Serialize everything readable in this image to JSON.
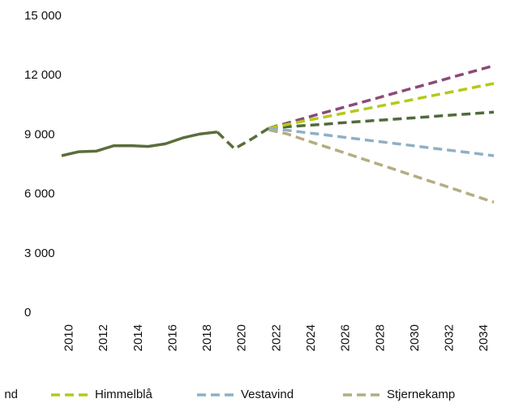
{
  "chart_data": {
    "type": "line",
    "x": [
      2010,
      2011,
      2012,
      2013,
      2014,
      2015,
      2016,
      2017,
      2018,
      2019,
      2020,
      2021,
      2022,
      2023,
      2024,
      2025,
      2026,
      2027,
      2028,
      2029,
      2030,
      2031,
      2032,
      2033,
      2034,
      2035
    ],
    "series": [
      {
        "color": "#5a6e3a",
        "dashed": false,
        "values": [
          7950,
          8150,
          8180,
          8450,
          8460,
          8420,
          8550,
          8850,
          9050,
          9150,
          null,
          null,
          null,
          null,
          null,
          null,
          null,
          null,
          null,
          null,
          null,
          null,
          null,
          null,
          null,
          null
        ]
      },
      {
        "color": "#5a6e3a",
        "dashed": true,
        "values": [
          null,
          null,
          null,
          null,
          null,
          null,
          null,
          null,
          null,
          9150,
          8300,
          8800,
          9350,
          null,
          null,
          null,
          null,
          null,
          null,
          null,
          null,
          null,
          null,
          null,
          null,
          null
        ]
      },
      {
        "color": "#8b4a78",
        "dashed": true,
        "values": [
          null,
          null,
          null,
          null,
          null,
          null,
          null,
          null,
          null,
          null,
          null,
          null,
          9350,
          9590,
          9830,
          10080,
          10320,
          10560,
          10800,
          11050,
          11290,
          11530,
          11770,
          12020,
          12260,
          12500
        ]
      },
      {
        "name": "nd",
        "color": "#4f6b3a",
        "dashed": true,
        "values": [
          null,
          null,
          null,
          null,
          null,
          null,
          null,
          null,
          null,
          null,
          null,
          null,
          9350,
          9410,
          9470,
          9530,
          9600,
          9660,
          9720,
          9780,
          9840,
          9900,
          9970,
          10030,
          10090,
          10150
        ]
      },
      {
        "name": "Himmelblå",
        "color": "#b5c918",
        "dashed": true,
        "values": [
          null,
          null,
          null,
          null,
          null,
          null,
          null,
          null,
          null,
          null,
          null,
          null,
          9350,
          9520,
          9700,
          9870,
          10040,
          10220,
          10390,
          10560,
          10730,
          10910,
          11080,
          11250,
          11430,
          11600
        ]
      },
      {
        "name": "Vestavind",
        "color": "#8fb0c4",
        "dashed": true,
        "values": [
          null,
          null,
          null,
          null,
          null,
          null,
          null,
          null,
          null,
          null,
          null,
          null,
          9350,
          9240,
          9130,
          9030,
          8920,
          8810,
          8700,
          8600,
          8490,
          8380,
          8270,
          8170,
          8060,
          7950
        ]
      },
      {
        "name": "Stjernekamp",
        "color": "#b3ae82",
        "dashed": true,
        "values": [
          null,
          null,
          null,
          null,
          null,
          null,
          null,
          null,
          null,
          null,
          null,
          null,
          9250,
          9060,
          8770,
          8480,
          8200,
          7910,
          7620,
          7330,
          7040,
          6750,
          6470,
          6180,
          5890,
          5600
        ]
      }
    ],
    "xlim": [
      2010,
      2035
    ],
    "xticks": [
      2010,
      2012,
      2014,
      2016,
      2018,
      2020,
      2022,
      2024,
      2026,
      2028,
      2030,
      2032,
      2034
    ],
    "ylim": [
      0,
      15000
    ],
    "yticks": [
      0,
      {
        "value": 3000,
        "label": "3 000"
      },
      {
        "value": 6000,
        "label": "6 000"
      },
      {
        "value": 9000,
        "label": "9 000"
      },
      {
        "value": 12000,
        "label": "12 000"
      },
      {
        "value": 15000,
        "label": "15 000"
      }
    ],
    "grid": false
  }
}
